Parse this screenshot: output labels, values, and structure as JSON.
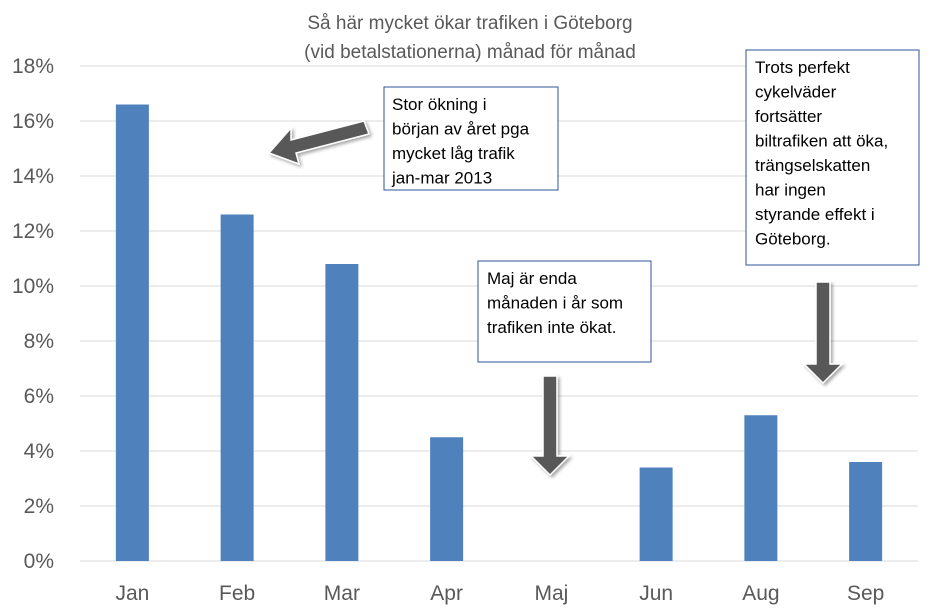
{
  "chart_data": {
    "type": "bar",
    "title": [
      "Så här mycket ökar trafiken i Göteborg",
      "(vid betalstationerna) månad för månad"
    ],
    "xlabel": "",
    "ylabel": "",
    "categories": [
      "Jan",
      "Feb",
      "Mar",
      "Apr",
      "Maj",
      "Jun",
      "Aug",
      "Sep"
    ],
    "values": [
      16.6,
      12.6,
      10.8,
      4.5,
      0,
      3.4,
      5.3,
      3.6
    ],
    "ylim": [
      0,
      18
    ],
    "yticks": [
      0,
      2,
      4,
      6,
      8,
      10,
      12,
      14,
      16,
      18
    ],
    "ytick_labels": [
      "0%",
      "2%",
      "4%",
      "6%",
      "8%",
      "10%",
      "12%",
      "14%",
      "16%",
      "18%"
    ],
    "grid": true,
    "bar_color": "#4F81BD",
    "grid_color": "#D9D9D9",
    "annotations": [
      {
        "lines": [
          "Stor ökning i",
          "början av året pga",
          "mycket låg trafik",
          "jan-mar 2013"
        ]
      },
      {
        "lines": [
          "Maj är enda",
          "månaden i år som",
          "trafiken inte ökat."
        ]
      },
      {
        "lines": [
          "Trots perfekt",
          "cykelväder",
          "fortsätter",
          "biltrafiken att öka,",
          "trängselskatten",
          "har ingen",
          "styrande effekt i",
          "Göteborg."
        ]
      }
    ],
    "annotation_border_color": "#2F5597",
    "arrow_color": "#595959"
  }
}
